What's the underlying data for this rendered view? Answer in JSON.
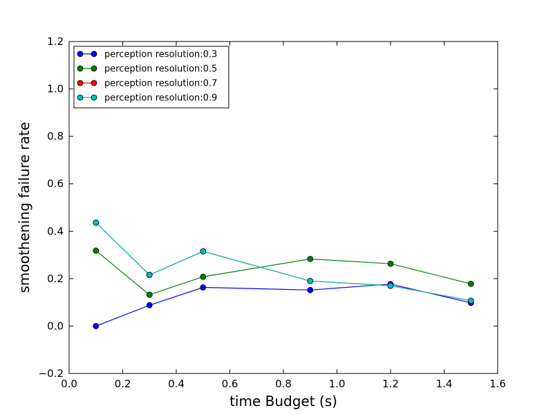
{
  "chart_data": {
    "type": "line",
    "title": "",
    "xlabel": "time Budget (s)",
    "ylabel": "smoothening failure rate",
    "xlim": [
      0.0,
      1.6
    ],
    "ylim": [
      -0.2,
      1.2
    ],
    "xticks": [
      0.0,
      0.2,
      0.4,
      0.6,
      0.8,
      1.0,
      1.2,
      1.4,
      1.6
    ],
    "yticks": [
      -0.2,
      0.0,
      0.2,
      0.4,
      0.6,
      0.8,
      1.0,
      1.2
    ],
    "xtick_labels": [
      "0.0",
      "0.2",
      "0.4",
      "0.6",
      "0.8",
      "1.0",
      "1.2",
      "1.4",
      "1.6"
    ],
    "ytick_labels": [
      "−0.2",
      "0.0",
      "0.2",
      "0.4",
      "0.6",
      "0.8",
      "1.0",
      "1.2"
    ],
    "grid": false,
    "legend_position": "top-left",
    "x": [
      0.1,
      0.3,
      0.5,
      0.9,
      1.2,
      1.5
    ],
    "series": [
      {
        "name": "perception resolution:0.3",
        "color": "#0000ff",
        "values": [
          0.0,
          0.088,
          0.163,
          0.152,
          0.177,
          0.098
        ]
      },
      {
        "name": "perception resolution:0.5",
        "color": "#008000",
        "values": [
          0.318,
          0.132,
          0.208,
          0.283,
          0.263,
          0.178
        ]
      },
      {
        "name": "perception resolution:0.7",
        "color": "#ff0000",
        "values": [
          0.436,
          0.216,
          0.315,
          0.19,
          0.17,
          0.107
        ]
      },
      {
        "name": "perception resolution:0.9",
        "color": "#00bfbf",
        "values": [
          0.436,
          0.216,
          0.315,
          0.19,
          0.17,
          0.107
        ]
      }
    ]
  }
}
